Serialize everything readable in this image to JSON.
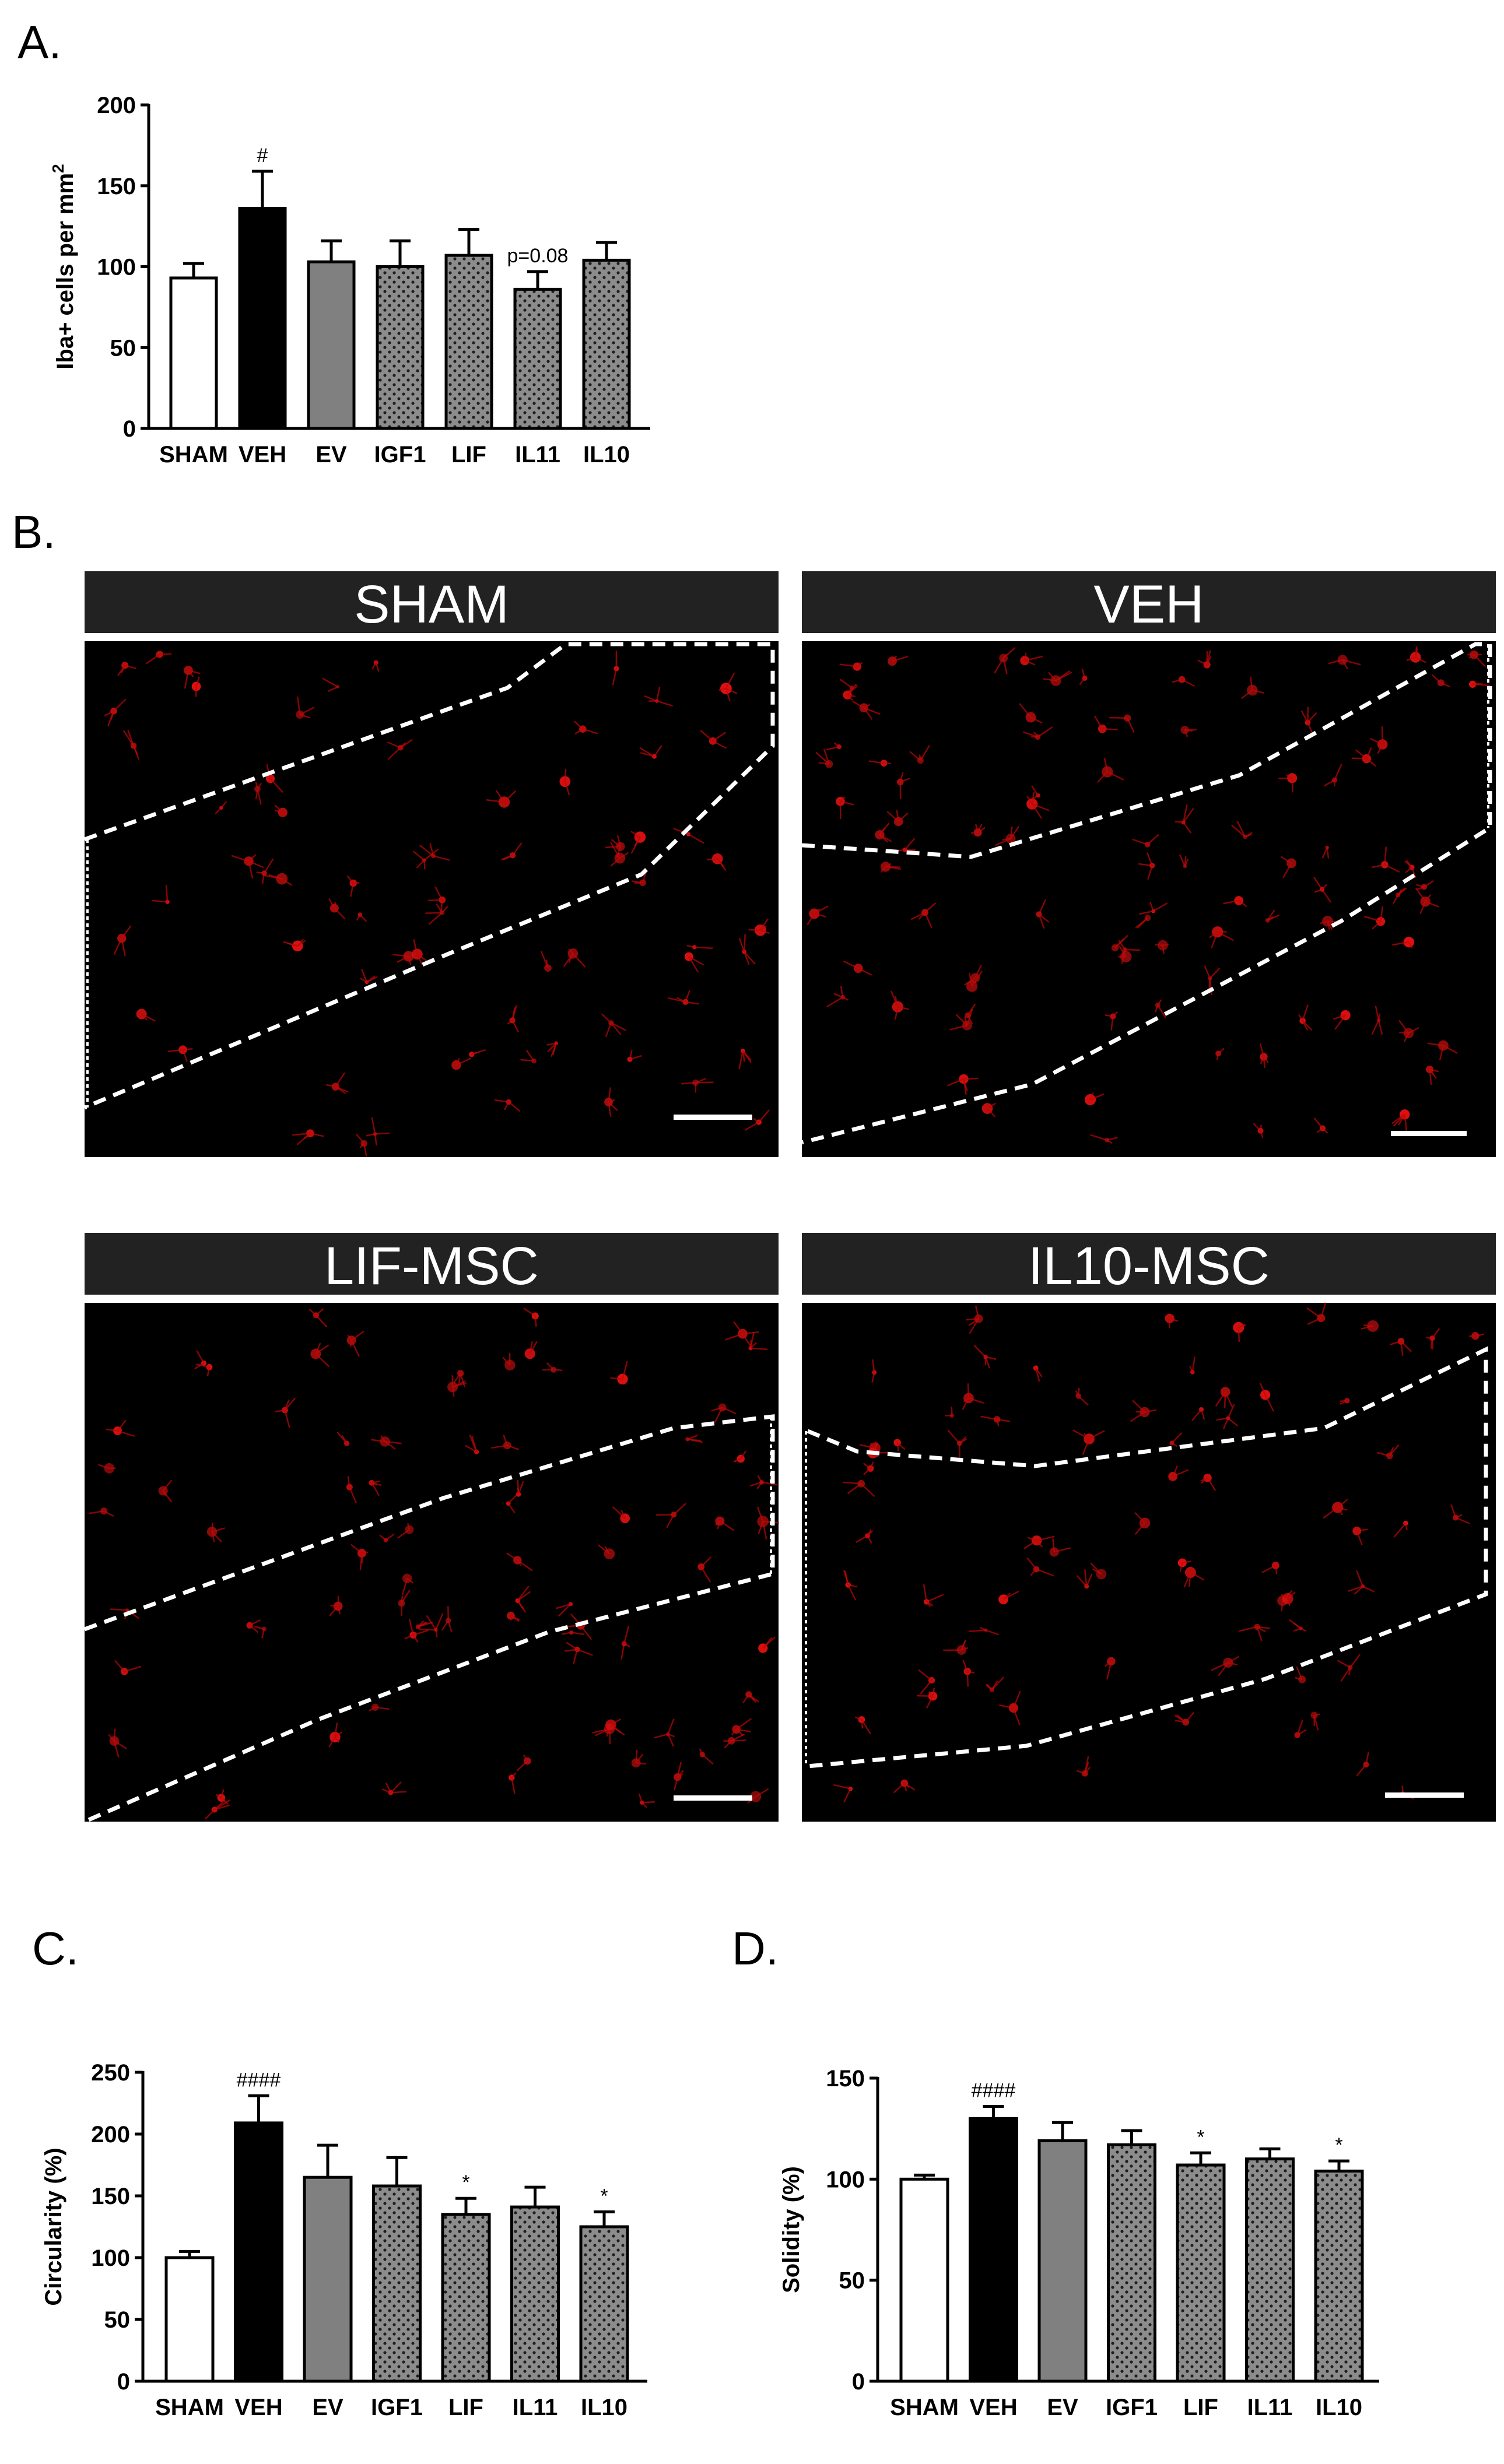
{
  "panels": {
    "a": {
      "letter": "A."
    },
    "b": {
      "letter": "B."
    },
    "c": {
      "letter": "C."
    },
    "d": {
      "letter": "D."
    }
  },
  "chart_data": [
    {
      "panel": "A.",
      "type": "bar",
      "title": "",
      "xlabel": "",
      "ylabel": "Iba+ cells per mm",
      "ylabel_superscript": "2",
      "ylim": [
        0,
        200
      ],
      "yticks": [
        0,
        50,
        100,
        150,
        200
      ],
      "grid": false,
      "categories": [
        "SHAM",
        "VEH",
        "EV",
        "IGF1",
        "LIF",
        "IL11",
        "IL10"
      ],
      "values": [
        93,
        136,
        103,
        100,
        107,
        86,
        104
      ],
      "errors": [
        9,
        23,
        13,
        16,
        16,
        11,
        11
      ],
      "fills": [
        "white",
        "black",
        "gray",
        "dotted",
        "dotted",
        "dotted",
        "dotted"
      ],
      "annotations": [
        "",
        "#",
        "",
        "",
        "",
        "p=0.08",
        ""
      ]
    },
    {
      "panel": "C.",
      "type": "bar",
      "title": "",
      "xlabel": "",
      "ylabel": "Circularity (%)",
      "ylim": [
        0,
        250
      ],
      "yticks": [
        0,
        50,
        100,
        150,
        200,
        250
      ],
      "grid": false,
      "categories": [
        "SHAM",
        "VEH",
        "EV",
        "IGF1",
        "LIF",
        "IL11",
        "IL10"
      ],
      "values": [
        100,
        209,
        165,
        158,
        135,
        141,
        125
      ],
      "errors": [
        5,
        22,
        26,
        23,
        13,
        16,
        12
      ],
      "fills": [
        "white",
        "black",
        "gray",
        "dotted",
        "dotted",
        "dotted",
        "dotted"
      ],
      "annotations": [
        "",
        "####",
        "",
        "",
        "*",
        "",
        "*"
      ]
    },
    {
      "panel": "D.",
      "type": "bar",
      "title": "",
      "xlabel": "",
      "ylabel": "Solidity (%)",
      "ylim": [
        0,
        150
      ],
      "yticks": [
        0,
        50,
        100,
        150
      ],
      "grid": false,
      "categories": [
        "SHAM",
        "VEH",
        "EV",
        "IGF1",
        "LIF",
        "IL11",
        "IL10"
      ],
      "values": [
        100,
        130,
        119,
        117,
        107,
        110,
        104
      ],
      "errors": [
        2,
        6,
        9,
        7,
        6,
        5,
        5
      ],
      "fills": [
        "white",
        "black",
        "gray",
        "dotted",
        "dotted",
        "dotted",
        "dotted"
      ],
      "annotations": [
        "",
        "####",
        "",
        "",
        "*",
        "",
        "*"
      ]
    }
  ],
  "micrographs": [
    {
      "label": "SHAM"
    },
    {
      "label": "VEH"
    },
    {
      "label": "LIF-MSC"
    },
    {
      "label": "IL10-MSC"
    }
  ],
  "colors": {
    "bar_white": "#ffffff",
    "bar_black": "#000000",
    "bar_gray": "#808080",
    "bar_dotted_base": "#8c8c8c",
    "title_strip": "#222222",
    "cells": "#e01010",
    "dashed_region": "#ffffff"
  }
}
